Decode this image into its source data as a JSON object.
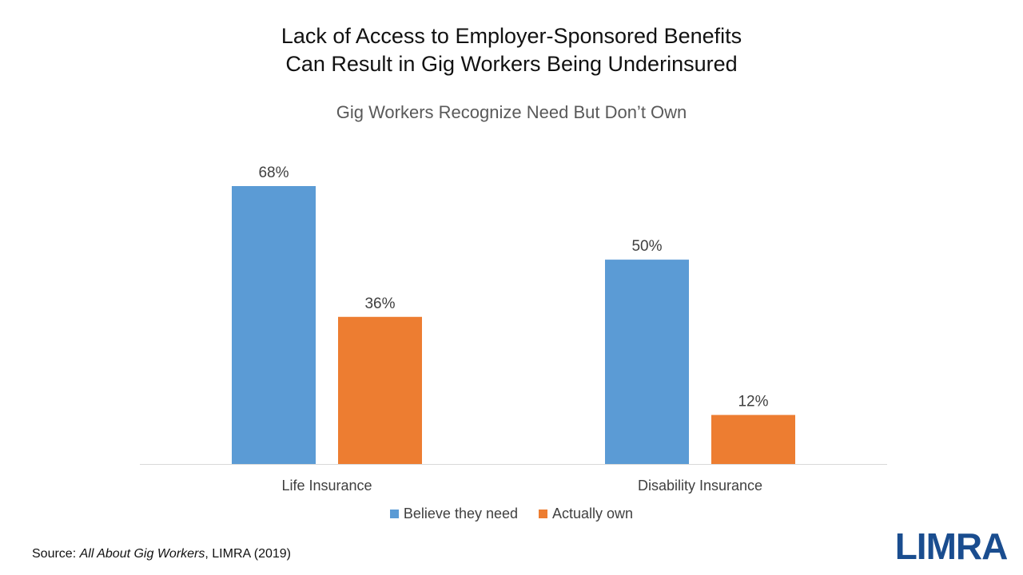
{
  "chart_data": {
    "type": "bar",
    "title": "Lack of Access to Employer-Sponsored Benefits",
    "title_line2": "Can Result in Gig Workers Being Underinsured",
    "subtitle": "Gig Workers Recognize Need But Don’t Own",
    "categories": [
      "Life Insurance",
      "Disability Insurance"
    ],
    "series": [
      {
        "name": "Believe they need",
        "values": [
          68,
          50
        ],
        "labels": [
          "68%",
          "50%"
        ],
        "color": "#5b9bd5"
      },
      {
        "name": "Actually own",
        "values": [
          36,
          12
        ],
        "labels": [
          "36%",
          "12%"
        ],
        "color": "#ed7d31"
      }
    ],
    "ylim": [
      0,
      75
    ],
    "grid": false,
    "legend": "bottom"
  },
  "source": {
    "prefix": "Source: ",
    "work": "All About Gig Workers",
    "suffix": ", LIMRA (2019)"
  },
  "logo": {
    "text": "LIMRA",
    "color": "#1a4d8f"
  }
}
